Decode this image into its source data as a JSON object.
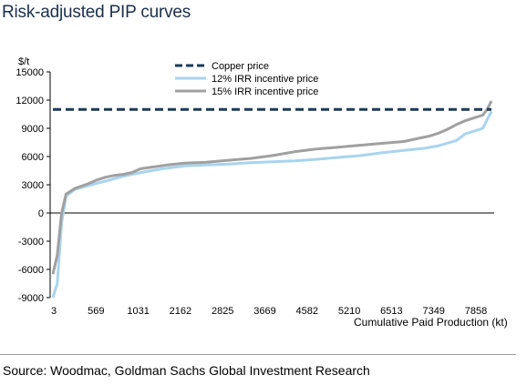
{
  "title": "Risk-adjusted PIP curves",
  "source": "Source: Woodmac, Goldman Sachs Global Investment Research",
  "chart_data": {
    "type": "line",
    "unit_label": "$/t",
    "xlabel": "Cumulative Paid Production (kt)",
    "ylabel": "",
    "ylim": [
      -9000,
      15000
    ],
    "yticks": [
      -9000,
      -6000,
      -3000,
      0,
      3000,
      6000,
      9000,
      12000,
      15000
    ],
    "xtick_labels": [
      "3",
      "569",
      "1031",
      "2162",
      "2825",
      "3669",
      "4582",
      "5210",
      "6513",
      "7349",
      "7858"
    ],
    "legend_position": "top-center",
    "grid": false,
    "x_index_range": [
      0,
      100
    ],
    "series": [
      {
        "name": "Copper price",
        "color": "#1b3a57",
        "style": "dashed",
        "x": [
          0,
          100
        ],
        "values": [
          11000,
          11000
        ]
      },
      {
        "name": "12% IRR incentive price",
        "color": "#a8d4ef",
        "style": "solid",
        "x": [
          0,
          1,
          2,
          3,
          5,
          8,
          12,
          16,
          20,
          25,
          30,
          35,
          40,
          45,
          50,
          55,
          60,
          65,
          70,
          75,
          80,
          85,
          88,
          92,
          94,
          96,
          98,
          100
        ],
        "values": [
          -9000,
          -7500,
          -1000,
          1800,
          2500,
          2900,
          3400,
          3900,
          4300,
          4700,
          5000,
          5100,
          5200,
          5350,
          5450,
          5550,
          5700,
          5900,
          6100,
          6400,
          6650,
          6900,
          7150,
          7700,
          8400,
          8700,
          9000,
          10800
        ]
      },
      {
        "name": "15% IRR incentive price",
        "color": "#a0a0a0",
        "style": "solid",
        "x": [
          0,
          1,
          2,
          3,
          5,
          8,
          10,
          12,
          14,
          16,
          18,
          20,
          23,
          26,
          30,
          35,
          40,
          45,
          50,
          55,
          60,
          65,
          70,
          75,
          80,
          83,
          86,
          88,
          90,
          92,
          94,
          96,
          98,
          99,
          100
        ],
        "values": [
          -6500,
          -4500,
          0,
          2000,
          2600,
          3100,
          3500,
          3800,
          4000,
          4100,
          4300,
          4700,
          4900,
          5100,
          5300,
          5400,
          5600,
          5800,
          6100,
          6500,
          6800,
          7000,
          7200,
          7400,
          7600,
          7900,
          8200,
          8500,
          8900,
          9400,
          9800,
          10100,
          10400,
          11000,
          11900
        ]
      }
    ]
  }
}
